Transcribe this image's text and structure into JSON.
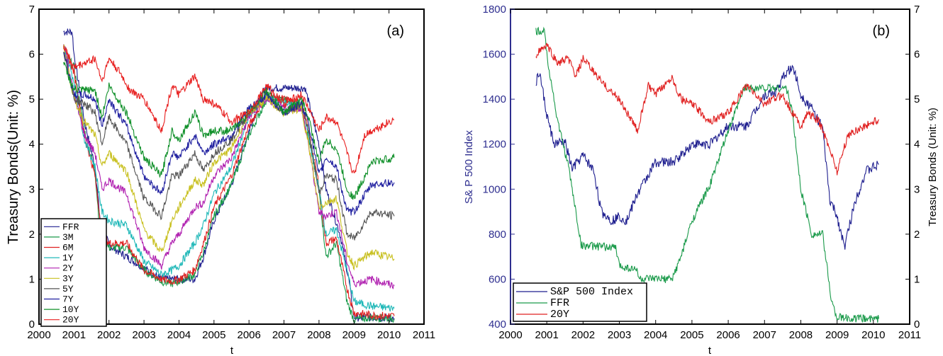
{
  "chart_data": [
    {
      "type": "line",
      "tag": "(a)",
      "xlabel": "t",
      "ylabel": "Treasury  Bonds(Unit: %)",
      "xlim": [
        2000,
        2011
      ],
      "ylim": [
        0,
        7
      ],
      "x_ticks": [
        "2000",
        "2001",
        "2002",
        "2003",
        "2004",
        "2005",
        "2006",
        "2007",
        "2008",
        "2009",
        "2010",
        "2011"
      ],
      "y_ticks": [
        "0",
        "1",
        "2",
        "3",
        "4",
        "5",
        "6",
        "7"
      ],
      "legend_position": "bottom-left",
      "series": [
        {
          "name": "FFR",
          "color": "#1f1f8f",
          "x": [
            2000.7,
            2000.95,
            2001.0,
            2001.3,
            2001.6,
            2001.75,
            2002.0,
            2002.9,
            2003.5,
            2003.55,
            2004.45,
            2004.7,
            2005.0,
            2005.5,
            2006.0,
            2006.45,
            2007.6,
            2007.75,
            2008.0,
            2008.2,
            2008.6,
            2008.85,
            2009.0,
            2009.5,
            2010.15
          ],
          "y": [
            6.5,
            6.5,
            6.0,
            4.5,
            3.5,
            2.3,
            1.75,
            1.3,
            1.0,
            1.0,
            1.0,
            1.5,
            2.3,
            3.1,
            4.3,
            5.25,
            5.25,
            4.8,
            4.0,
            3.0,
            2.0,
            1.0,
            0.15,
            0.15,
            0.13
          ]
        },
        {
          "name": "3M",
          "color": "#1a9a4a",
          "x": [
            2000.7,
            2001.0,
            2001.3,
            2001.6,
            2001.75,
            2002.0,
            2002.5,
            2003.0,
            2003.5,
            2003.8,
            2004.0,
            2004.45,
            2004.7,
            2005.0,
            2005.5,
            2006.0,
            2006.5,
            2007.0,
            2007.5,
            2007.7,
            2008.0,
            2008.2,
            2008.5,
            2008.8,
            2009.0,
            2009.5,
            2010.15
          ],
          "y": [
            6.1,
            5.7,
            4.3,
            3.4,
            2.0,
            1.7,
            1.7,
            1.2,
            0.95,
            0.9,
            0.95,
            1.1,
            1.6,
            2.4,
            3.1,
            4.2,
            5.0,
            5.0,
            4.8,
            4.1,
            3.0,
            1.5,
            1.8,
            0.5,
            0.1,
            0.15,
            0.12
          ]
        },
        {
          "name": "6M",
          "color": "#e02020",
          "x": [
            2000.7,
            2001.0,
            2001.3,
            2001.6,
            2001.8,
            2002.0,
            2002.5,
            2003.0,
            2003.5,
            2003.8,
            2004.0,
            2004.45,
            2004.7,
            2005.0,
            2005.5,
            2006.0,
            2006.5,
            2007.0,
            2007.5,
            2007.7,
            2008.0,
            2008.2,
            2008.5,
            2008.8,
            2009.0,
            2009.5,
            2010.15
          ],
          "y": [
            6.2,
            5.6,
            4.2,
            3.3,
            2.0,
            1.8,
            1.8,
            1.2,
            1.0,
            0.95,
            1.0,
            1.2,
            1.8,
            2.6,
            3.3,
            4.4,
            5.1,
            5.0,
            4.9,
            4.3,
            3.1,
            1.8,
            1.9,
            0.8,
            0.25,
            0.2,
            0.18
          ]
        },
        {
          "name": "1Y",
          "color": "#20b8b8",
          "x": [
            2000.7,
            2001.0,
            2001.3,
            2001.6,
            2001.8,
            2002.0,
            2002.5,
            2003.0,
            2003.5,
            2003.8,
            2004.0,
            2004.45,
            2004.7,
            2005.0,
            2005.5,
            2006.0,
            2006.5,
            2007.0,
            2007.5,
            2007.7,
            2008.0,
            2008.2,
            2008.5,
            2008.8,
            2009.0,
            2009.5,
            2010.15
          ],
          "y": [
            6.2,
            5.4,
            4.1,
            3.5,
            2.5,
            2.3,
            2.2,
            1.4,
            1.1,
            1.2,
            1.3,
            1.8,
            2.2,
            2.9,
            3.5,
            4.6,
            5.1,
            4.9,
            4.9,
            4.2,
            3.0,
            2.0,
            2.1,
            1.2,
            0.5,
            0.4,
            0.35
          ]
        },
        {
          "name": "2Y",
          "color": "#b020b0",
          "x": [
            2000.7,
            2001.0,
            2001.3,
            2001.6,
            2001.8,
            2002.0,
            2002.5,
            2003.0,
            2003.5,
            2003.8,
            2004.0,
            2004.45,
            2004.7,
            2005.0,
            2005.5,
            2006.0,
            2006.5,
            2007.0,
            2007.5,
            2007.7,
            2008.0,
            2008.2,
            2008.5,
            2008.8,
            2009.0,
            2009.5,
            2010.15
          ],
          "y": [
            6.3,
            5.1,
            4.2,
            3.8,
            3.0,
            3.2,
            2.9,
            1.7,
            1.3,
            1.8,
            2.0,
            2.6,
            2.7,
            3.3,
            3.7,
            4.6,
            5.0,
            4.8,
            4.8,
            4.0,
            2.5,
            2.4,
            2.5,
            1.4,
            0.9,
            1.0,
            0.85
          ]
        },
        {
          "name": "3Y",
          "color": "#c8c020",
          "x": [
            2000.7,
            2001.0,
            2001.3,
            2001.6,
            2001.8,
            2002.0,
            2002.5,
            2003.0,
            2003.5,
            2003.8,
            2004.0,
            2004.45,
            2004.7,
            2005.0,
            2005.5,
            2006.0,
            2006.5,
            2007.0,
            2007.5,
            2007.7,
            2008.0,
            2008.2,
            2008.5,
            2008.8,
            2009.0,
            2009.5,
            2010.15
          ],
          "y": [
            6.2,
            5.0,
            4.5,
            4.2,
            3.5,
            3.8,
            3.4,
            2.1,
            1.6,
            2.3,
            2.6,
            3.2,
            3.1,
            3.6,
            3.9,
            4.7,
            5.0,
            4.7,
            4.8,
            4.0,
            2.6,
            2.7,
            2.8,
            1.6,
            1.3,
            1.6,
            1.45
          ]
        },
        {
          "name": "5Y",
          "color": "#555555",
          "x": [
            2000.7,
            2001.0,
            2001.3,
            2001.6,
            2001.8,
            2002.0,
            2002.5,
            2003.0,
            2003.5,
            2003.8,
            2004.0,
            2004.45,
            2004.7,
            2005.0,
            2005.5,
            2006.0,
            2006.5,
            2007.0,
            2007.5,
            2007.7,
            2008.0,
            2008.2,
            2008.5,
            2008.8,
            2009.0,
            2009.5,
            2010.15
          ],
          "y": [
            6.1,
            5.0,
            4.9,
            4.7,
            4.0,
            4.6,
            4.0,
            2.8,
            2.4,
            3.3,
            3.3,
            3.8,
            3.4,
            3.8,
            4.1,
            4.7,
            5.1,
            4.7,
            4.9,
            4.3,
            2.9,
            3.3,
            3.2,
            2.0,
            1.9,
            2.5,
            2.4
          ]
        },
        {
          "name": "7Y",
          "color": "#2020a0",
          "x": [
            2000.7,
            2001.0,
            2001.3,
            2001.6,
            2001.8,
            2002.0,
            2002.5,
            2003.0,
            2003.5,
            2003.8,
            2004.0,
            2004.45,
            2004.7,
            2005.0,
            2005.5,
            2006.0,
            2006.5,
            2007.0,
            2007.5,
            2007.7,
            2008.0,
            2008.2,
            2008.5,
            2008.8,
            2009.0,
            2009.5,
            2010.15
          ],
          "y": [
            6.1,
            5.1,
            5.1,
            5.0,
            4.4,
            5.0,
            4.4,
            3.3,
            2.9,
            3.8,
            3.7,
            4.2,
            3.8,
            4.0,
            4.2,
            4.8,
            5.1,
            4.7,
            4.9,
            4.5,
            3.3,
            3.7,
            3.5,
            2.5,
            2.5,
            3.1,
            3.15
          ]
        },
        {
          "name": "10Y",
          "color": "#10902a",
          "x": [
            2000.7,
            2001.0,
            2001.3,
            2001.6,
            2001.8,
            2002.0,
            2002.5,
            2003.0,
            2003.5,
            2003.8,
            2004.0,
            2004.45,
            2004.7,
            2005.0,
            2005.5,
            2006.0,
            2006.5,
            2007.0,
            2007.5,
            2007.7,
            2008.0,
            2008.2,
            2008.5,
            2008.8,
            2009.0,
            2009.5,
            2010.15
          ],
          "y": [
            5.8,
            5.2,
            5.2,
            5.2,
            4.6,
            5.3,
            4.7,
            3.7,
            3.3,
            4.3,
            4.1,
            4.7,
            4.2,
            4.3,
            4.3,
            4.7,
            5.2,
            4.7,
            5.0,
            4.6,
            3.6,
            4.1,
            3.9,
            3.0,
            2.8,
            3.6,
            3.7
          ]
        },
        {
          "name": "20Y",
          "color": "#e82020",
          "x": [
            2000.7,
            2001.0,
            2001.3,
            2001.6,
            2001.8,
            2002.0,
            2002.3,
            2002.6,
            2003.0,
            2003.5,
            2003.8,
            2004.0,
            2004.45,
            2004.7,
            2005.0,
            2005.5,
            2006.0,
            2006.5,
            2007.0,
            2007.5,
            2007.7,
            2008.0,
            2008.2,
            2008.5,
            2008.8,
            2009.0,
            2009.3,
            2009.5,
            2010.15
          ],
          "y": [
            6.2,
            5.7,
            5.8,
            5.9,
            5.4,
            5.9,
            5.6,
            5.2,
            5.0,
            4.3,
            5.3,
            5.1,
            5.5,
            5.0,
            4.9,
            4.5,
            4.7,
            5.3,
            4.9,
            5.1,
            4.8,
            4.3,
            4.6,
            4.5,
            3.8,
            3.3,
            4.2,
            4.3,
            4.55
          ]
        }
      ]
    },
    {
      "type": "line",
      "tag": "(b)",
      "xlabel": "t",
      "ylabel_left": "S& P 500  Index",
      "ylabel_right": "Treasury  Bonds (Unit: %)",
      "xlim": [
        2000,
        2011
      ],
      "ylim_left": [
        400,
        1800
      ],
      "ylim_right": [
        0,
        7
      ],
      "x_ticks": [
        "2000",
        "2001",
        "2002",
        "2003",
        "2004",
        "2005",
        "2006",
        "2007",
        "2008",
        "2009",
        "2010",
        "2011"
      ],
      "y_ticks_left": [
        "400",
        "600",
        "800",
        "1000",
        "1200",
        "1400",
        "1600",
        "1800"
      ],
      "y_ticks_right": [
        "0",
        "1",
        "2",
        "3",
        "4",
        "5",
        "6",
        "7"
      ],
      "legend_position": "bottom-left",
      "series": [
        {
          "name": "S&P 500 Index",
          "axis": "left",
          "color": "#1f1f8f",
          "x": [
            2000.7,
            2000.8,
            2001.0,
            2001.2,
            2001.5,
            2001.7,
            2002.0,
            2002.3,
            2002.5,
            2002.8,
            2003.0,
            2003.2,
            2003.5,
            2004.0,
            2004.5,
            2005.0,
            2005.5,
            2006.0,
            2006.5,
            2007.0,
            2007.3,
            2007.6,
            2007.8,
            2008.0,
            2008.3,
            2008.6,
            2008.8,
            2009.0,
            2009.2,
            2009.5,
            2009.8,
            2010.15
          ],
          "y": [
            1470,
            1520,
            1330,
            1200,
            1210,
            1090,
            1150,
            1080,
            900,
            860,
            880,
            860,
            980,
            1120,
            1120,
            1200,
            1200,
            1280,
            1280,
            1420,
            1430,
            1520,
            1540,
            1420,
            1360,
            1270,
            950,
            880,
            740,
            950,
            1080,
            1110
          ]
        },
        {
          "name": "FFR",
          "axis": "right",
          "color": "#1a9a4a",
          "x": [
            2000.7,
            2000.95,
            2001.0,
            2001.3,
            2001.6,
            2001.8,
            2001.95,
            2002.9,
            2003.0,
            2003.5,
            2003.55,
            2004.45,
            2004.7,
            2005.0,
            2005.5,
            2006.0,
            2006.45,
            2007.6,
            2007.75,
            2008.0,
            2008.3,
            2008.6,
            2008.85,
            2009.0,
            2009.5,
            2010.15
          ],
          "y": [
            6.5,
            6.5,
            6.0,
            4.5,
            3.5,
            2.5,
            1.75,
            1.7,
            1.3,
            1.2,
            1.0,
            1.0,
            1.5,
            2.3,
            3.1,
            4.3,
            5.25,
            5.25,
            4.8,
            3.0,
            2.0,
            2.0,
            0.5,
            0.15,
            0.12,
            0.12
          ]
        },
        {
          "name": "20Y",
          "axis": "right",
          "color": "#e02020",
          "x": [
            2000.7,
            2001.0,
            2001.3,
            2001.6,
            2001.8,
            2002.0,
            2002.3,
            2002.6,
            2003.0,
            2003.5,
            2003.8,
            2004.0,
            2004.45,
            2004.7,
            2005.0,
            2005.5,
            2006.0,
            2006.5,
            2007.0,
            2007.5,
            2007.7,
            2008.0,
            2008.2,
            2008.5,
            2008.8,
            2009.0,
            2009.3,
            2009.5,
            2010.15
          ],
          "y": [
            6.0,
            6.2,
            5.8,
            5.9,
            5.5,
            5.9,
            5.6,
            5.3,
            5.0,
            4.3,
            5.3,
            5.1,
            5.5,
            5.0,
            4.9,
            4.5,
            4.7,
            5.3,
            4.9,
            5.1,
            4.8,
            4.4,
            4.7,
            4.5,
            3.9,
            3.4,
            4.2,
            4.3,
            4.55
          ]
        }
      ]
    }
  ]
}
